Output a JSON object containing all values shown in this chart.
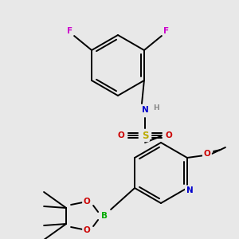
{
  "bg": "#e8e8e8",
  "bond_color": "#000000",
  "bond_lw": 1.4,
  "atom_bg": "#e8e8e8",
  "colors": {
    "F": "#cc00cc",
    "N": "#0000cc",
    "H": "#888888",
    "S": "#bbaa00",
    "O": "#cc0000",
    "B": "#00aa00",
    "C": "#000000"
  },
  "font_bold": true,
  "font_size": 7.5
}
